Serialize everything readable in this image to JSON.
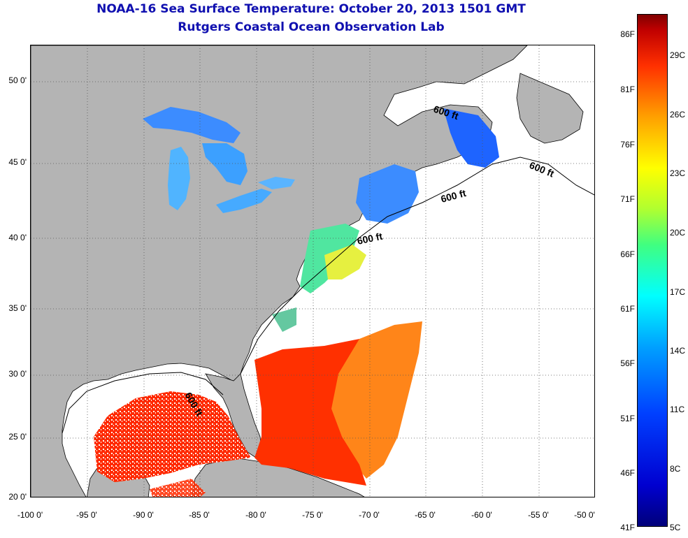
{
  "title": {
    "line1": "NOAA-16 Sea Surface Temperature:  October 20, 2013 1501 GMT",
    "line2": "Rutgers Coastal Ocean Observation Lab"
  },
  "map": {
    "lat_ticks": [
      "50 0'",
      "45 0'",
      "40 0'",
      "35 0'",
      "30 0'",
      "25 0'",
      "20 0'"
    ],
    "lon_ticks": [
      "-100 0'",
      "-95 0'",
      "-90 0'",
      "-85 0'",
      "-80 0'",
      "-75 0'",
      "-70 0'",
      "-65 0'",
      "-60 0'",
      "-55 0'",
      "-50 0'"
    ],
    "contour_label": "600 ft",
    "land_color": "#b4b4b4",
    "nodata_color": "#ffffff"
  },
  "colorbar": {
    "fahrenheit_labels": [
      "86F",
      "81F",
      "76F",
      "71F",
      "66F",
      "61F",
      "56F",
      "51F",
      "46F",
      "41F"
    ],
    "celsius_labels": [
      "29C",
      "26C",
      "23C",
      "20C",
      "17C",
      "14C",
      "11C",
      "8C",
      "5C"
    ],
    "colors": [
      "#00007a",
      "#0000d0",
      "#0040ff",
      "#00a0ff",
      "#00ffff",
      "#40ff80",
      "#b0ff30",
      "#ffff00",
      "#ffa000",
      "#ff3000",
      "#c00000",
      "#800000"
    ]
  }
}
